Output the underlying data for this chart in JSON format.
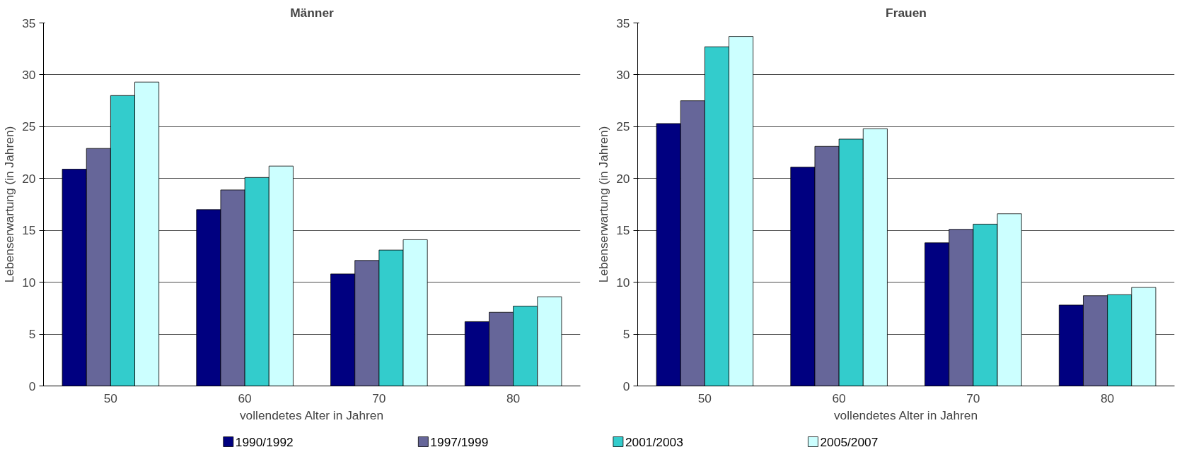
{
  "chart_data": [
    {
      "type": "bar",
      "title": "Männer",
      "xlabel": "vollendetes Alter in Jahren",
      "ylabel": "Lebenserwartung (in Jahren)",
      "categories": [
        "50",
        "60",
        "70",
        "80"
      ],
      "ylim": [
        0,
        35
      ],
      "yticks": [
        0,
        5,
        10,
        15,
        20,
        25,
        30,
        35
      ],
      "grid": "y",
      "legend": "bottom",
      "series": [
        {
          "name": "1990/1992",
          "color": "#000080",
          "values": [
            20.9,
            17.0,
            10.8,
            6.2
          ]
        },
        {
          "name": "1997/1999",
          "color": "#666699",
          "values": [
            22.9,
            18.9,
            12.1,
            7.1
          ]
        },
        {
          "name": "2001/2003",
          "color": "#33cccc",
          "values": [
            28.0,
            20.1,
            13.1,
            7.7
          ]
        },
        {
          "name": "2005/2007",
          "color": "#ccffff",
          "values": [
            29.3,
            21.2,
            14.1,
            8.6
          ]
        }
      ]
    },
    {
      "type": "bar",
      "title": "Frauen",
      "xlabel": "vollendetes Alter in Jahren",
      "ylabel": "Lebenserwartung (in Jahren)",
      "categories": [
        "50",
        "60",
        "70",
        "80"
      ],
      "ylim": [
        0,
        35
      ],
      "yticks": [
        0,
        5,
        10,
        15,
        20,
        25,
        30,
        35
      ],
      "grid": "y",
      "series": [
        {
          "color": "#000080",
          "values": [
            25.3,
            21.1,
            13.8,
            7.8
          ]
        },
        {
          "color": "#666699",
          "values": [
            27.5,
            23.1,
            15.1,
            8.7
          ]
        },
        {
          "color": "#33cccc",
          "values": [
            32.7,
            23.8,
            15.6,
            8.8
          ]
        },
        {
          "color": "#ccffff",
          "values": [
            33.7,
            24.8,
            16.6,
            9.5
          ]
        }
      ]
    }
  ]
}
